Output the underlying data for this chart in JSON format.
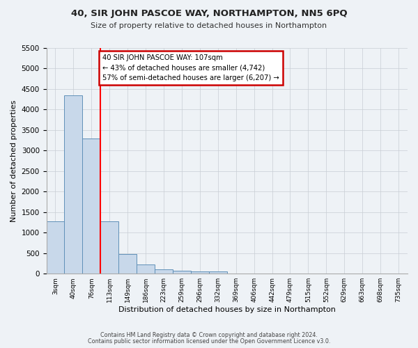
{
  "title": "40, SIR JOHN PASCOE WAY, NORTHAMPTON, NN5 6PQ",
  "subtitle": "Size of property relative to detached houses in Northampton",
  "xlabel": "Distribution of detached houses by size in Northampton",
  "ylabel": "Number of detached properties",
  "bar_values": [
    1270,
    4350,
    3300,
    1270,
    480,
    220,
    100,
    75,
    60,
    60,
    0,
    0,
    0,
    0,
    0,
    0,
    0,
    0,
    0,
    0
  ],
  "bin_labels": [
    "3sqm",
    "40sqm",
    "76sqm",
    "113sqm",
    "149sqm",
    "186sqm",
    "223sqm",
    "259sqm",
    "296sqm",
    "332sqm",
    "369sqm",
    "406sqm",
    "442sqm",
    "479sqm",
    "515sqm",
    "552sqm",
    "629sqm",
    "663sqm",
    "698sqm",
    "735sqm"
  ],
  "ylim": [
    0,
    5500
  ],
  "yticks": [
    0,
    500,
    1000,
    1500,
    2000,
    2500,
    3000,
    3500,
    4000,
    4500,
    5000,
    5500
  ],
  "bar_color": "#c8d8ea",
  "bar_edge_color": "#6090b8",
  "red_line_bin": 2,
  "annotation_text": "40 SIR JOHN PASCOE WAY: 107sqm\n← 43% of detached houses are smaller (4,742)\n57% of semi-detached houses are larger (6,207) →",
  "annotation_box_color": "#ffffff",
  "annotation_box_edge_color": "#cc0000",
  "bg_color": "#eef2f6",
  "grid_color": "#c8cdd4",
  "footer1": "Contains HM Land Registry data © Crown copyright and database right 2024.",
  "footer2": "Contains public sector information licensed under the Open Government Licence v3.0."
}
